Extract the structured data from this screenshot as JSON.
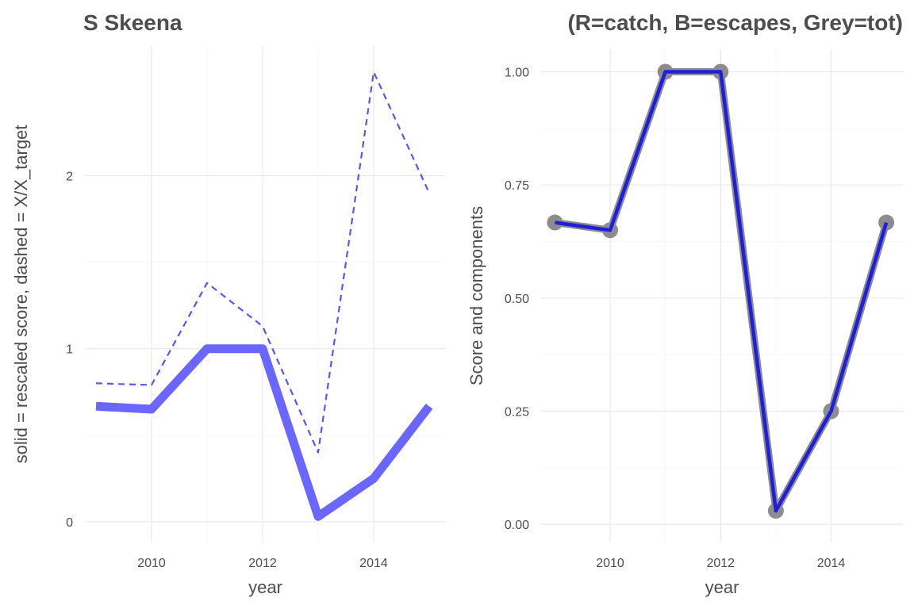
{
  "chart_data": [
    {
      "type": "line",
      "title": "S Skeena",
      "xlabel": "year",
      "ylabel": "solid = rescaled score, dashed = X/X_target",
      "x": [
        2009,
        2010,
        2011,
        2012,
        2013,
        2014,
        2015
      ],
      "xlim": [
        2008.8,
        2015.3
      ],
      "ylim": [
        -0.12,
        2.75
      ],
      "x_ticks": [
        2010,
        2012,
        2014
      ],
      "x_tick_labels": [
        "2010",
        "2012",
        "2014"
      ],
      "y_ticks": [
        0,
        1,
        2
      ],
      "y_tick_labels": [
        "0",
        "1",
        "2"
      ],
      "grid": true,
      "series": [
        {
          "style": "solid",
          "color": "#6b66ff",
          "values": [
            0.667,
            0.65,
            1.0,
            1.0,
            0.03,
            0.25,
            0.667
          ]
        },
        {
          "style": "dashed",
          "color": "#5a55f0",
          "values": [
            0.8,
            0.79,
            1.38,
            1.13,
            0.4,
            2.6,
            1.9
          ]
        }
      ]
    },
    {
      "type": "line",
      "title": "(R=catch, B=escapes, Grey=tot)",
      "xlabel": "year",
      "ylabel": "Score and components",
      "x": [
        2009,
        2010,
        2011,
        2012,
        2013,
        2014,
        2015
      ],
      "xlim": [
        2008.75,
        2015.3
      ],
      "ylim": [
        -0.04,
        1.05
      ],
      "x_ticks": [
        2010,
        2012,
        2014
      ],
      "x_tick_labels": [
        "2010",
        "2012",
        "2014"
      ],
      "y_ticks": [
        0,
        0.25,
        0.5,
        0.75,
        1.0
      ],
      "y_tick_labels": [
        "0.00",
        "0.25",
        "0.50",
        "0.75",
        "1.00"
      ],
      "grid": true,
      "series": [
        {
          "style": "line+points",
          "color": "#8c8c8c",
          "values": [
            0.667,
            0.65,
            1.0,
            1.0,
            0.03,
            0.25,
            0.667
          ]
        },
        {
          "style": "solid",
          "color": "#1f1fdb",
          "values": [
            0.667,
            0.65,
            1.0,
            1.0,
            0.03,
            0.25,
            0.667
          ]
        }
      ]
    }
  ]
}
